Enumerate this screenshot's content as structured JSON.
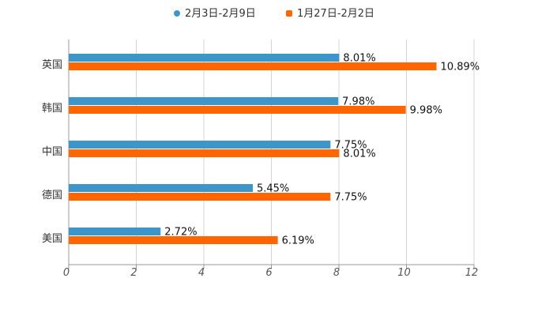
{
  "chart_data": {
    "type": "bar",
    "orientation": "horizontal",
    "categories": [
      "英国",
      "韩国",
      "中国",
      "德国",
      "美国"
    ],
    "series": [
      {
        "name": "2月3日-2月9日",
        "values": [
          8.01,
          7.98,
          7.75,
          5.45,
          2.72
        ],
        "labels": [
          "8.01%",
          "7.98%",
          "7.75%",
          "5.45%",
          "2.72%"
        ],
        "color": "#3c96c9",
        "marker": "circle"
      },
      {
        "name": "1月27日-2月2日",
        "values": [
          10.89,
          9.98,
          8.01,
          7.75,
          6.19
        ],
        "labels": [
          "10.89%",
          "9.98%",
          "8.01%",
          "7.75%",
          "6.19%"
        ],
        "color": "#ff6600",
        "marker": "square"
      }
    ],
    "xlim": [
      0,
      12
    ],
    "xticks": [
      "0",
      "2",
      "4",
      "6",
      "8",
      "10",
      "12"
    ],
    "grid": true,
    "legend_position": "top-center",
    "title": "",
    "xlabel": "",
    "ylabel": ""
  }
}
